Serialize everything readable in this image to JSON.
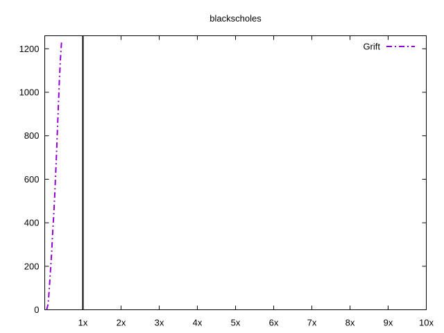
{
  "chart_data": {
    "type": "line",
    "title": "blackscholes",
    "xlabel": "",
    "ylabel": "",
    "xlim": [
      0,
      10
    ],
    "ylim": [
      0,
      1260
    ],
    "x_ticks": [
      {
        "value": 1,
        "label": "1x"
      },
      {
        "value": 2,
        "label": "2x"
      },
      {
        "value": 3,
        "label": "3x"
      },
      {
        "value": 4,
        "label": "4x"
      },
      {
        "value": 5,
        "label": "5x"
      },
      {
        "value": 6,
        "label": "6x"
      },
      {
        "value": 7,
        "label": "7x"
      },
      {
        "value": 8,
        "label": "8x"
      },
      {
        "value": 9,
        "label": "9x"
      },
      {
        "value": 10,
        "label": "10x"
      }
    ],
    "y_ticks": [
      {
        "value": 0,
        "label": "0"
      },
      {
        "value": 200,
        "label": "200"
      },
      {
        "value": 400,
        "label": "400"
      },
      {
        "value": 600,
        "label": "600"
      },
      {
        "value": 800,
        "label": "800"
      },
      {
        "value": 1000,
        "label": "1000"
      },
      {
        "value": 1200,
        "label": "1200"
      }
    ],
    "reference_line": {
      "x": 1,
      "color": "#000000"
    },
    "legend": {
      "position": "top-right"
    },
    "series": [
      {
        "name": "Grift",
        "color": "#9400d3",
        "style": "dash-dot",
        "x": [
          0.05,
          0.08,
          0.1,
          0.12,
          0.15,
          0.18,
          0.2,
          0.23,
          0.26,
          0.3,
          0.34,
          0.38,
          0.41,
          0.44
        ],
        "y": [
          0,
          20,
          50,
          100,
          180,
          260,
          330,
          420,
          520,
          680,
          860,
          1040,
          1150,
          1230
        ]
      }
    ]
  }
}
